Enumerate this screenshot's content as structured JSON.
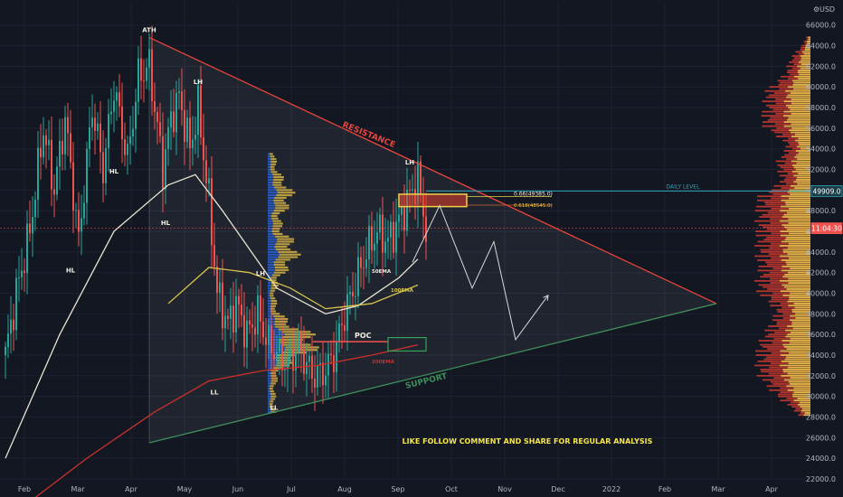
{
  "header": {
    "currency": "USD"
  },
  "colors": {
    "background": "#131722",
    "bull": "#26a69a",
    "bear": "#ef5350",
    "resistance": "#e8453c",
    "support": "#3f8f5a",
    "ema50": "#e8e3d0",
    "ema100": "#d7c44b",
    "ema200": "#c9312b",
    "daily_level": "#2fa3b8",
    "fib_box": "#f0d24a",
    "poc": "#ef5350",
    "vp_high": "#e9c44b",
    "vp_mid": "#d1392f",
    "vp_low": "#2a62d4",
    "annotation": "#f4e64a",
    "current_price_bg": "#ef5350"
  },
  "chart_data": {
    "type": "candlestick",
    "x_axis": {
      "labels": [
        "Feb",
        "Mar",
        "Apr",
        "May",
        "Jun",
        "Jul",
        "Aug",
        "Sep",
        "Oct",
        "Nov",
        "Dec",
        "2022",
        "Feb",
        "Mar",
        "Apr"
      ]
    },
    "y_axis": {
      "ylim": [
        22000,
        66500
      ],
      "ticks": [
        22000,
        24000,
        26000,
        28000,
        30000,
        32000,
        34000,
        36000,
        38000,
        40000,
        42000,
        44000,
        46000,
        48000,
        50000,
        52000,
        54000,
        56000,
        58000,
        60000,
        62000,
        64000,
        66000
      ],
      "tick_labels": [
        "22000.0",
        "24000.0",
        "26000.0",
        "28000.0",
        "30000.0",
        "32000.0",
        "34000.0",
        "36000.0",
        "38000.0",
        "40000.0",
        "42000.0",
        "44000.0",
        "46000.0",
        "48000.0",
        "50000.0",
        "52000.0",
        "54000.0",
        "56000.0",
        "58000.0",
        "60000.0",
        "62000.0",
        "64000.0",
        "66000.0"
      ],
      "price_badges": [
        {
          "value": 49909,
          "label": "49909.0",
          "kind": "daily"
        },
        {
          "value": 46300,
          "label": "11:04:30",
          "kind": "current"
        }
      ]
    },
    "price_path": [
      {
        "t": 0,
        "p": 34000
      },
      {
        "t": 4,
        "p": 40000
      },
      {
        "t": 9,
        "p": 46000
      },
      {
        "t": 14,
        "p": 56000
      },
      {
        "t": 18,
        "p": 50000
      },
      {
        "t": 22,
        "p": 57000
      },
      {
        "t": 27,
        "p": 45000
      },
      {
        "t": 32,
        "p": 58000
      },
      {
        "t": 36,
        "p": 52000
      },
      {
        "t": 40,
        "p": 60000
      },
      {
        "t": 45,
        "p": 53000
      },
      {
        "t": 49,
        "p": 61000
      },
      {
        "t": 53,
        "p": 62000
      },
      {
        "t": 56,
        "p": 56000
      },
      {
        "t": 58,
        "p": 52000
      },
      {
        "t": 61,
        "p": 57000
      },
      {
        "t": 64,
        "p": 59000
      },
      {
        "t": 68,
        "p": 54000
      },
      {
        "t": 71,
        "p": 58000
      },
      {
        "t": 75,
        "p": 49000
      },
      {
        "t": 78,
        "p": 40000
      },
      {
        "t": 82,
        "p": 37000
      },
      {
        "t": 85,
        "p": 39000
      },
      {
        "t": 89,
        "p": 36000
      },
      {
        "t": 93,
        "p": 38000
      },
      {
        "t": 97,
        "p": 35000
      },
      {
        "t": 101,
        "p": 34000
      },
      {
        "t": 104,
        "p": 33000
      },
      {
        "t": 108,
        "p": 35000
      },
      {
        "t": 111,
        "p": 33000
      },
      {
        "t": 114,
        "p": 32000
      },
      {
        "t": 118,
        "p": 32500
      },
      {
        "t": 121,
        "p": 34000
      },
      {
        "t": 125,
        "p": 38000
      },
      {
        "t": 129,
        "p": 41000
      },
      {
        "t": 133,
        "p": 44000
      },
      {
        "t": 137,
        "p": 46000
      },
      {
        "t": 141,
        "p": 45000
      },
      {
        "t": 145,
        "p": 47000
      },
      {
        "t": 149,
        "p": 49500
      },
      {
        "t": 152,
        "p": 51000
      },
      {
        "t": 155,
        "p": 46300
      }
    ],
    "lines": [
      {
        "name": "resistance",
        "label": "RESISTANCE",
        "points": [
          {
            "t": 53,
            "p": 64800
          },
          {
            "t": 262,
            "p": 39000
          }
        ]
      },
      {
        "name": "support",
        "label": "SUPPORT",
        "points": [
          {
            "t": 53,
            "p": 25500
          },
          {
            "t": 262,
            "p": 39000
          }
        ]
      },
      {
        "name": "daily-level",
        "label": "DAILY LEVEL",
        "points": [
          {
            "t": 155,
            "p": 49909
          },
          {
            "t": 290,
            "p": 49909
          }
        ]
      }
    ],
    "ema": [
      {
        "name": "50EMA",
        "label": "50EMA",
        "points": [
          {
            "t": 0,
            "p": 24000
          },
          {
            "t": 20,
            "p": 36000
          },
          {
            "t": 40,
            "p": 46000
          },
          {
            "t": 60,
            "p": 50500
          },
          {
            "t": 70,
            "p": 51500
          },
          {
            "t": 80,
            "p": 48000
          },
          {
            "t": 100,
            "p": 40500
          },
          {
            "t": 118,
            "p": 38000
          },
          {
            "t": 130,
            "p": 38800
          },
          {
            "t": 145,
            "p": 41500
          },
          {
            "t": 152,
            "p": 43300
          }
        ]
      },
      {
        "name": "100EMA",
        "label": "100EMA",
        "points": [
          {
            "t": 60,
            "p": 39000
          },
          {
            "t": 75,
            "p": 42500
          },
          {
            "t": 90,
            "p": 42000
          },
          {
            "t": 105,
            "p": 40500
          },
          {
            "t": 118,
            "p": 38500
          },
          {
            "t": 135,
            "p": 39000
          },
          {
            "t": 152,
            "p": 40800
          }
        ]
      },
      {
        "name": "200EMA",
        "label": "200EMA",
        "points": [
          {
            "t": 0,
            "p": 18000
          },
          {
            "t": 30,
            "p": 24000
          },
          {
            "t": 55,
            "p": 28500
          },
          {
            "t": 75,
            "p": 31500
          },
          {
            "t": 95,
            "p": 32500
          },
          {
            "t": 115,
            "p": 33000
          },
          {
            "t": 135,
            "p": 34000
          },
          {
            "t": 152,
            "p": 35000
          }
        ]
      }
    ],
    "projection": [
      {
        "t": 150,
        "p": 43000
      },
      {
        "t": 160,
        "p": 48500
      },
      {
        "t": 172,
        "p": 40500
      },
      {
        "t": 180,
        "p": 45000
      },
      {
        "t": 188,
        "p": 35500
      },
      {
        "t": 200,
        "p": 39800
      }
    ],
    "fib": {
      "label": "0.66(49385.0)",
      "sub_label": "0.618(48545.0)",
      "box": {
        "t0": 145,
        "t1": 170,
        "p0": 49600,
        "p1": 48400
      },
      "value": 49385,
      "sub_value": 48545
    },
    "poc": {
      "label": "POC",
      "value": 35300,
      "box": {
        "t0": 141,
        "t1": 155,
        "p0": 35700,
        "p1": 34400
      }
    },
    "swing_labels": [
      {
        "text": "ATH",
        "t": 53,
        "p": 65300
      },
      {
        "text": "LH",
        "t": 71,
        "p": 60300
      },
      {
        "text": "HL",
        "t": 40,
        "p": 51600
      },
      {
        "text": "HL",
        "t": 59,
        "p": 46600
      },
      {
        "text": "HL",
        "t": 24,
        "p": 42000
      },
      {
        "text": "LL",
        "t": 77,
        "p": 30200
      },
      {
        "text": "LH",
        "t": 94,
        "p": 41700
      },
      {
        "text": "LL",
        "t": 99,
        "p": 28700
      },
      {
        "text": "LH",
        "t": 149,
        "p": 52500
      }
    ],
    "annotations": [
      {
        "name": "cta",
        "text": "LIKE FOLLOW COMMENT AND SHARE FOR REGULAR ANALYSIS"
      }
    ]
  }
}
